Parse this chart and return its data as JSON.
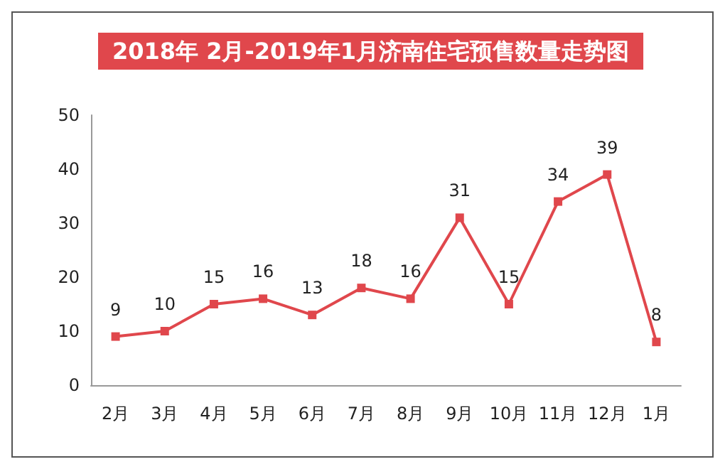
{
  "chart_data": {
    "type": "line",
    "title": "2018年 2月-2019年1月济南住宅预售数量走势图",
    "categories": [
      "2月",
      "3月",
      "4月",
      "5月",
      "6月",
      "7月",
      "8月",
      "9月",
      "10月",
      "11月",
      "12月",
      "1月"
    ],
    "values": [
      9,
      10,
      15,
      16,
      13,
      18,
      16,
      31,
      15,
      34,
      39,
      8
    ],
    "color": "#e0474c",
    "ylim": [
      0,
      50
    ],
    "yticks": [
      0,
      10,
      20,
      30,
      40,
      50
    ],
    "grid": false,
    "marker": "square",
    "line_style": "solid",
    "data_labels": true
  }
}
